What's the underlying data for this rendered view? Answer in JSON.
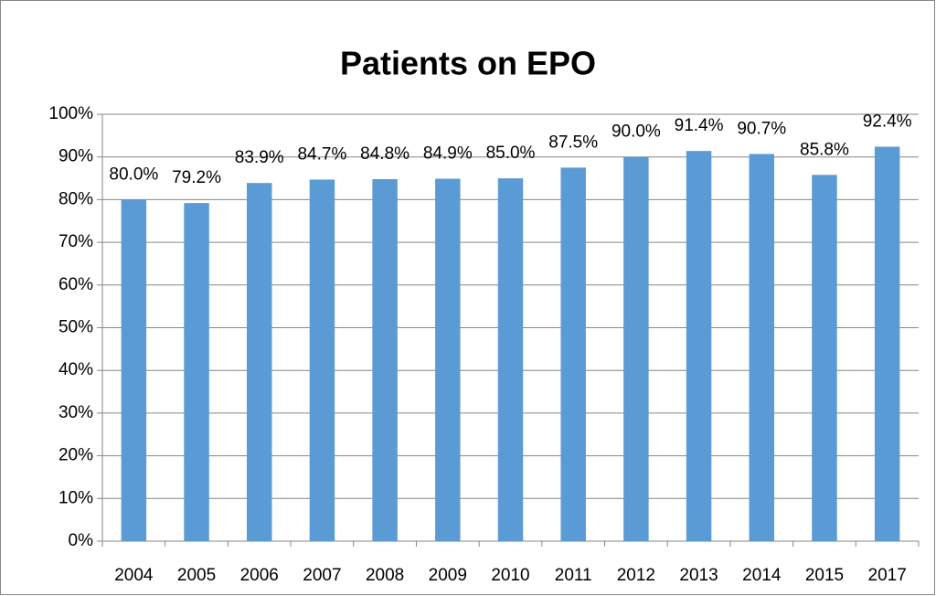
{
  "chart_data": {
    "type": "bar",
    "title": "Patients on EPO",
    "categories": [
      "2004",
      "2005",
      "2006",
      "2007",
      "2008",
      "2009",
      "2010",
      "2011",
      "2012",
      "2013",
      "2014",
      "2015",
      "2017"
    ],
    "values": [
      80.0,
      79.2,
      83.9,
      84.7,
      84.8,
      84.9,
      85.0,
      87.5,
      90.0,
      91.4,
      90.7,
      85.8,
      92.4
    ],
    "value_labels": [
      "80.0%",
      "79.2%",
      "83.9%",
      "84.7%",
      "84.8%",
      "84.9%",
      "85.0%",
      "87.5%",
      "90.0%",
      "91.4%",
      "90.7%",
      "85.8%",
      "92.4%"
    ],
    "color": "#5b9bd5",
    "ylim": [
      0,
      100
    ],
    "yticks": [
      {
        "value": 0,
        "label": "0%"
      },
      {
        "value": 10,
        "label": "10%"
      },
      {
        "value": 20,
        "label": "20%"
      },
      {
        "value": 30,
        "label": "30%"
      },
      {
        "value": 40,
        "label": "40%"
      },
      {
        "value": 50,
        "label": "50%"
      },
      {
        "value": 60,
        "label": "60%"
      },
      {
        "value": 70,
        "label": "70%"
      },
      {
        "value": 80,
        "label": "80%"
      },
      {
        "value": 90,
        "label": "90%"
      },
      {
        "value": 100,
        "label": "100%"
      }
    ],
    "grid": true
  }
}
